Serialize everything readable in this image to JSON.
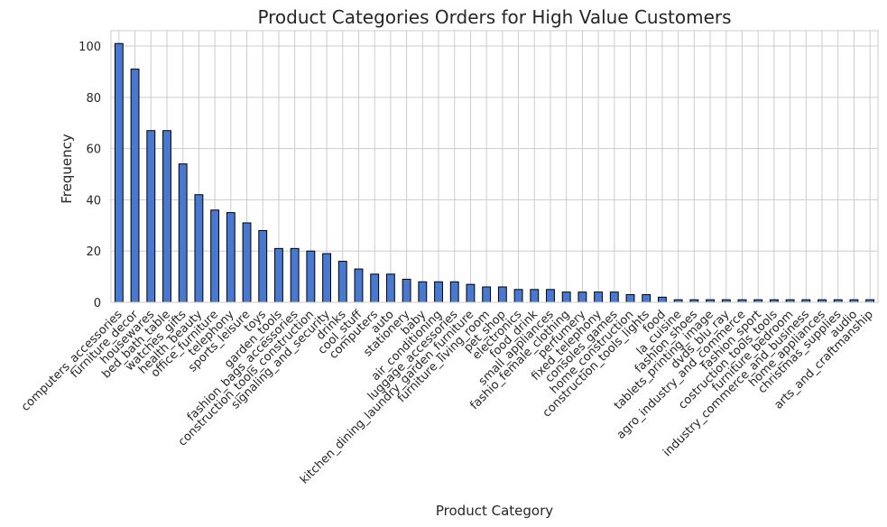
{
  "chart_data": {
    "type": "bar",
    "title": "Product Categories Orders for High Value Customers",
    "xlabel": "Product Category",
    "ylabel": "Frequency",
    "ylim": [
      0,
      106
    ],
    "yticks": [
      0,
      20,
      40,
      60,
      80,
      100
    ],
    "grid": true,
    "bar_color": "#4878cf",
    "edge_color": "#000000",
    "categories": [
      "computers_accessories",
      "furniture_decor",
      "housewares",
      "bed_bath_table",
      "watches_gifts",
      "health_beauty",
      "office_furniture",
      "telephony",
      "sports_leisure",
      "toys",
      "garden_tools",
      "fashion_bags_accessories",
      "construction_tools_construction",
      "signaling_and_security",
      "drinks",
      "cool_stuff",
      "computers",
      "auto",
      "stationery",
      "baby",
      "air_conditioning",
      "luggage_accessories",
      "kitchen_dining_laundry_garden_furniture",
      "furniture_living_room",
      "pet_shop",
      "electronics",
      "food_drink",
      "small_appliances",
      "fashio_female_clothing",
      "perfumery",
      "fixed_telephony",
      "consoles_games",
      "home_construction",
      "construction_tools_lights",
      "food",
      "la_cuisine",
      "fashion_shoes",
      "tablets_printing_image",
      "dvds_blu_ray",
      "agro_industry_and_commerce",
      "fashion_sport",
      "costruction_tools_tools",
      "furniture_bedroom",
      "industry_commerce_and_business",
      "home_appliances",
      "christmas_supplies",
      "audio",
      "arts_and_craftmanship"
    ],
    "values": [
      101,
      91,
      67,
      67,
      54,
      42,
      36,
      35,
      31,
      28,
      21,
      21,
      20,
      19,
      16,
      13,
      11,
      11,
      9,
      8,
      8,
      8,
      7,
      6,
      6,
      5,
      5,
      5,
      4,
      4,
      4,
      4,
      3,
      3,
      2,
      1,
      1,
      1,
      1,
      1,
      1,
      1,
      1,
      1,
      1,
      1,
      1,
      1
    ]
  }
}
